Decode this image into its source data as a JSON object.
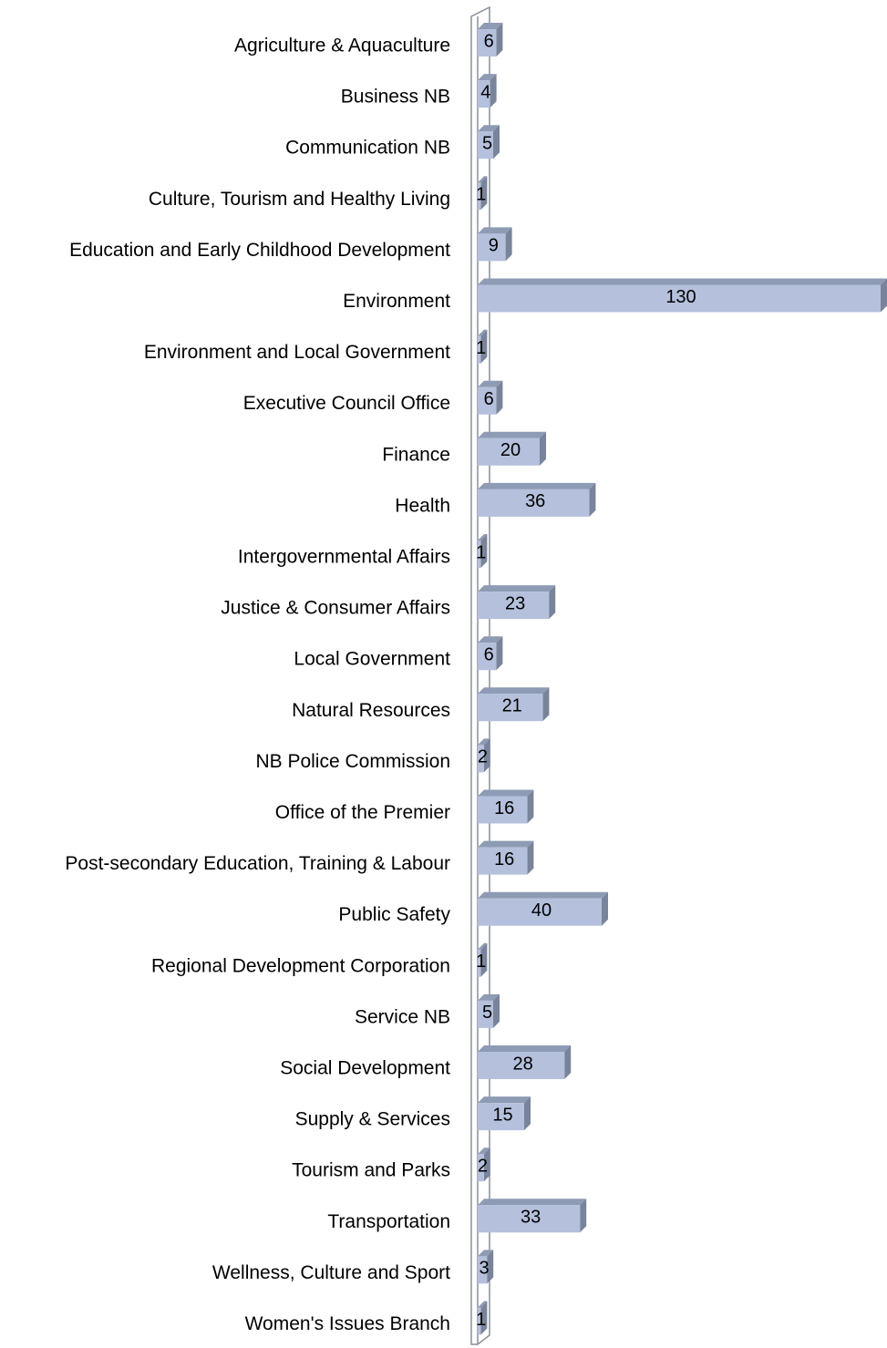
{
  "chart_data": {
    "type": "bar",
    "orientation": "horizontal",
    "categories": [
      "Agriculture & Aquaculture",
      "Business NB",
      "Communication NB",
      "Culture, Tourism and Healthy Living",
      "Education and Early Childhood Development",
      "Environment",
      "Environment and Local Government",
      "Executive Council Office",
      "Finance",
      "Health",
      "Intergovernmental Affairs",
      "Justice & Consumer Affairs",
      "Local Government",
      "Natural Resources",
      "NB Police Commission",
      "Office of the Premier",
      "Post-secondary Education, Training & Labour",
      "Public Safety",
      "Regional Development Corporation",
      "Service NB",
      "Social Development",
      "Supply & Services",
      "Tourism and Parks",
      "Transportation",
      "Wellness, Culture and Sport",
      "Women's Issues Branch"
    ],
    "values": [
      6,
      4,
      5,
      1,
      9,
      130,
      1,
      6,
      20,
      36,
      1,
      23,
      6,
      21,
      2,
      16,
      16,
      40,
      1,
      5,
      28,
      15,
      2,
      33,
      3,
      1
    ],
    "color": "#b4c0dc"
  }
}
